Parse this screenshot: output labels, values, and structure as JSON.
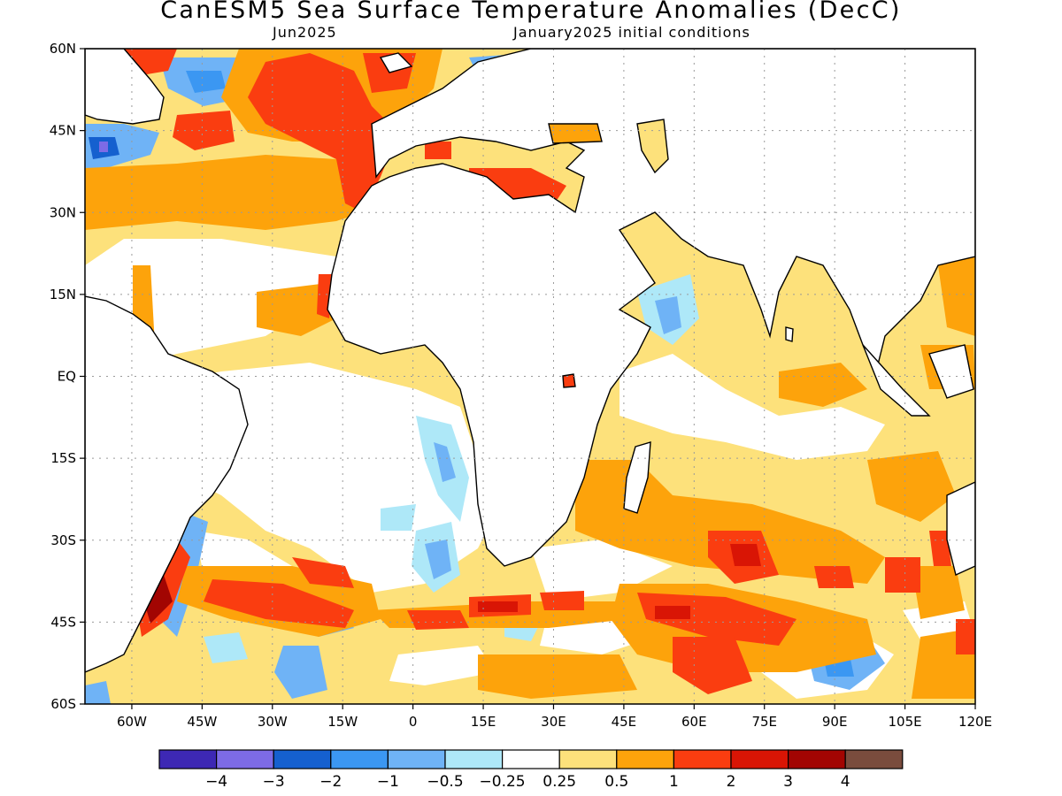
{
  "title": "CanESM5 Sea Surface Temperature Anomalies (DecC)",
  "subtitle_left": "Jun2025",
  "subtitle_right": "January2025 initial conditions",
  "map": {
    "extent": {
      "lon_min": -70,
      "lon_max": 120,
      "lat_min": -60,
      "lat_max": 60
    },
    "grid": true,
    "lat_ticks": [
      {
        "value": 60,
        "label": "60N"
      },
      {
        "value": 45,
        "label": "45N"
      },
      {
        "value": 30,
        "label": "30N"
      },
      {
        "value": 15,
        "label": "15N"
      },
      {
        "value": 0,
        "label": "EQ"
      },
      {
        "value": -15,
        "label": "15S"
      },
      {
        "value": -30,
        "label": "30S"
      },
      {
        "value": -45,
        "label": "45S"
      },
      {
        "value": -60,
        "label": "60S"
      }
    ],
    "lon_ticks": [
      {
        "value": -60,
        "label": "60W"
      },
      {
        "value": -45,
        "label": "45W"
      },
      {
        "value": -30,
        "label": "30W"
      },
      {
        "value": -15,
        "label": "15W"
      },
      {
        "value": 0,
        "label": "0"
      },
      {
        "value": 15,
        "label": "15E"
      },
      {
        "value": 30,
        "label": "30E"
      },
      {
        "value": 45,
        "label": "45E"
      },
      {
        "value": 60,
        "label": "60E"
      },
      {
        "value": 75,
        "label": "75E"
      },
      {
        "value": 90,
        "label": "90E"
      },
      {
        "value": 105,
        "label": "105E"
      },
      {
        "value": 120,
        "label": "120E"
      }
    ]
  },
  "colorbar": {
    "colors": [
      "#3d28b4",
      "#7d6be6",
      "#1560cf",
      "#3b97f2",
      "#6fb3f6",
      "#aee8f8",
      "#ffffff",
      "#fde17b",
      "#fda30b",
      "#fa3d10",
      "#d91505",
      "#a20502",
      "#7a4c3d"
    ],
    "labels": [
      "−4",
      "−3",
      "−2",
      "−1",
      "−0.5",
      "−0.25",
      "0.25",
      "0.5",
      "1",
      "2",
      "3",
      "4"
    ]
  }
}
